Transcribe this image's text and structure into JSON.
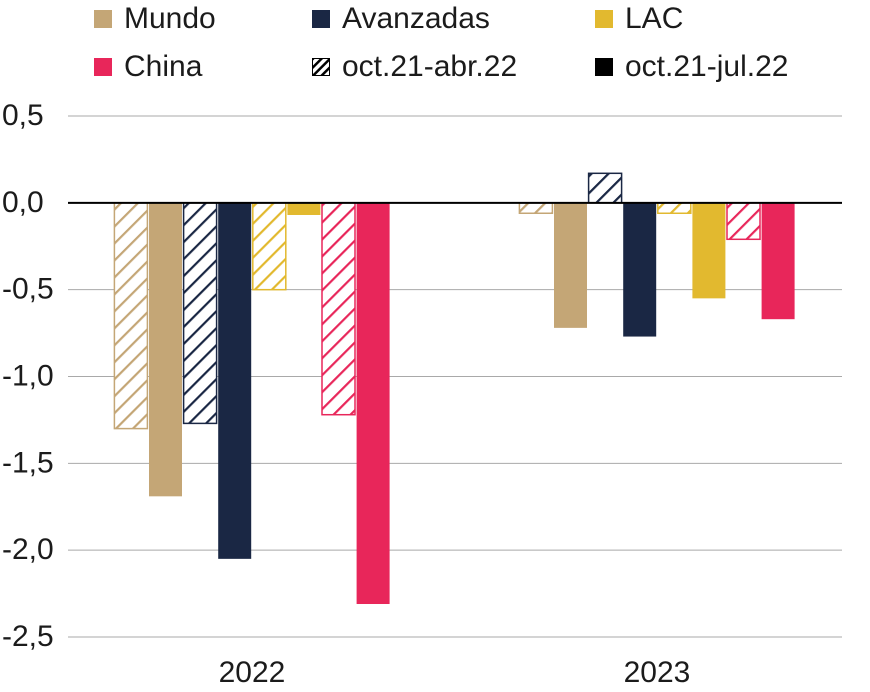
{
  "chart_data": {
    "type": "bar",
    "categories": [
      "2022",
      "2023"
    ],
    "ylim": [
      -2.5,
      0.5
    ],
    "yticks": [
      0.5,
      0.0,
      -0.5,
      -1.0,
      -1.5,
      -2.0,
      -2.5
    ],
    "ytick_labels": [
      "0,5",
      "0,0",
      "-0,5",
      "-1,0",
      "-1,5",
      "-2,0",
      "-2,5"
    ],
    "grid": true,
    "legend_position": "top",
    "legend": [
      {
        "label": "Mundo",
        "kind": "solid",
        "color": "#c4a676"
      },
      {
        "label": "Avanzadas",
        "kind": "solid",
        "color": "#1a2744"
      },
      {
        "label": "LAC",
        "kind": "solid",
        "color": "#e2b92f"
      },
      {
        "label": "China",
        "kind": "solid",
        "color": "#e8265a"
      },
      {
        "label": "oct.21-abr.22",
        "kind": "hatched",
        "color": "#000000"
      },
      {
        "label": "oct.21-jul.22",
        "kind": "solid",
        "color": "#000000"
      }
    ],
    "series": [
      {
        "region": "Mundo",
        "period": "oct.21-abr.22",
        "style": "hatched",
        "color": "#c4a676",
        "values": [
          -1.3,
          -0.06
        ]
      },
      {
        "region": "Mundo",
        "period": "oct.21-jul.22",
        "style": "solid",
        "color": "#c4a676",
        "values": [
          -1.69,
          -0.72
        ]
      },
      {
        "region": "Avanzadas",
        "period": "oct.21-abr.22",
        "style": "hatched",
        "color": "#1a2744",
        "values": [
          -1.27,
          0.17
        ]
      },
      {
        "region": "Avanzadas",
        "period": "oct.21-jul.22",
        "style": "solid",
        "color": "#1a2744",
        "values": [
          -2.05,
          -0.77
        ]
      },
      {
        "region": "LAC",
        "period": "oct.21-abr.22",
        "style": "hatched",
        "color": "#e2b92f",
        "values": [
          -0.5,
          -0.06
        ]
      },
      {
        "region": "LAC",
        "period": "oct.21-jul.22",
        "style": "solid",
        "color": "#e2b92f",
        "values": [
          -0.07,
          -0.55
        ]
      },
      {
        "region": "China",
        "period": "oct.21-abr.22",
        "style": "hatched",
        "color": "#e8265a",
        "values": [
          -1.22,
          -0.21
        ]
      },
      {
        "region": "China",
        "period": "oct.21-jul.22",
        "style": "solid",
        "color": "#e8265a",
        "values": [
          -2.31,
          -0.67
        ]
      }
    ]
  }
}
